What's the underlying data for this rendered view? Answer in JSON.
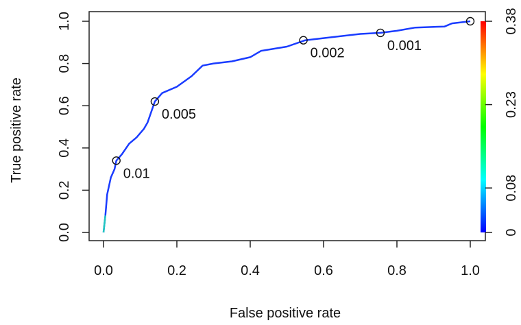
{
  "chart_data": {
    "type": "line",
    "xlabel": "False positive rate",
    "ylabel": "True positive rate",
    "xlim": [
      0,
      1
    ],
    "ylim": [
      0,
      1
    ],
    "x_ticks": [
      0.0,
      0.2,
      0.4,
      0.6,
      0.8,
      1.0
    ],
    "x_tick_labels": [
      "0.0",
      "0.2",
      "0.4",
      "0.6",
      "0.8",
      "1.0"
    ],
    "y_ticks": [
      0.0,
      0.2,
      0.4,
      0.6,
      0.8,
      1.0
    ],
    "y_tick_labels": [
      "0.0",
      "0.2",
      "0.4",
      "0.6",
      "0.8",
      "1.0"
    ],
    "grid": false,
    "series": [
      {
        "points": [
          [
            0.0,
            0.0
          ],
          [
            0.005,
            0.08
          ],
          [
            0.01,
            0.18
          ],
          [
            0.02,
            0.26
          ],
          [
            0.03,
            0.3
          ],
          [
            0.035,
            0.34
          ],
          [
            0.05,
            0.37
          ],
          [
            0.07,
            0.42
          ],
          [
            0.09,
            0.45
          ],
          [
            0.11,
            0.49
          ],
          [
            0.12,
            0.52
          ],
          [
            0.14,
            0.62
          ],
          [
            0.16,
            0.66
          ],
          [
            0.2,
            0.69
          ],
          [
            0.24,
            0.74
          ],
          [
            0.27,
            0.79
          ],
          [
            0.3,
            0.8
          ],
          [
            0.35,
            0.81
          ],
          [
            0.4,
            0.83
          ],
          [
            0.43,
            0.86
          ],
          [
            0.5,
            0.88
          ],
          [
            0.55,
            0.91
          ],
          [
            0.6,
            0.92
          ],
          [
            0.7,
            0.94
          ],
          [
            0.755,
            0.945
          ],
          [
            0.8,
            0.955
          ],
          [
            0.85,
            0.97
          ],
          [
            0.93,
            0.975
          ],
          [
            0.95,
            0.99
          ],
          [
            1.0,
            1.0
          ]
        ]
      }
    ],
    "cutoff_markers": [
      {
        "x": 0.035,
        "y": 0.34,
        "label": "0.01"
      },
      {
        "x": 0.14,
        "y": 0.62,
        "label": "0.005"
      },
      {
        "x": 0.545,
        "y": 0.91,
        "label": "0.002"
      },
      {
        "x": 0.755,
        "y": 0.945,
        "label": "0.001"
      },
      {
        "x": 1.0,
        "y": 1.0,
        "label": ""
      }
    ],
    "colorbar": {
      "tick_labels": [
        "0",
        "0.08",
        "0.23",
        "0.38"
      ],
      "range": [
        0,
        0.38
      ],
      "ticks": [
        0,
        0.08,
        0.23,
        0.38
      ],
      "colors": [
        "#0000ff",
        "#00ffff",
        "#00ff00",
        "#ffff00",
        "#ff0000"
      ]
    },
    "line_color": "#1a3cff"
  }
}
